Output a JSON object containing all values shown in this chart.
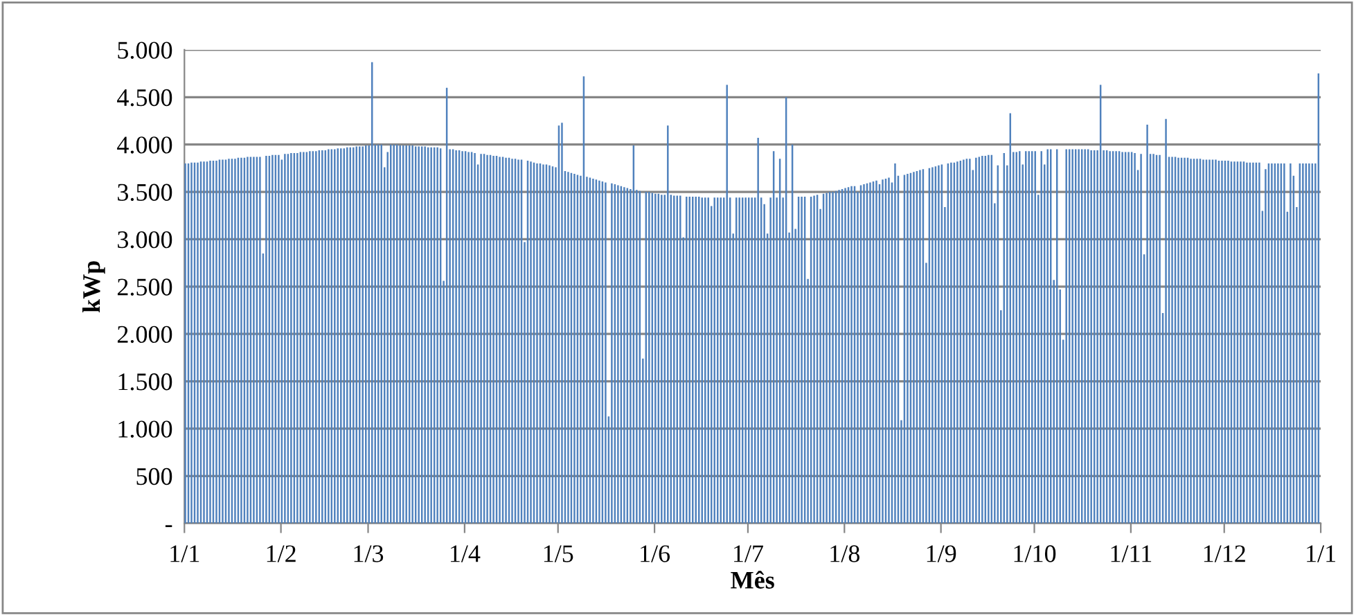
{
  "chart_data": {
    "type": "bar",
    "xlabel": "Mês",
    "ylabel": "kWp",
    "categories": [
      "1/1",
      null,
      null,
      null,
      null,
      null,
      null,
      null,
      null,
      null,
      null,
      null,
      null,
      null,
      null,
      null,
      null,
      null,
      null,
      null,
      null,
      null,
      null,
      null,
      null,
      null,
      null,
      null,
      null,
      null,
      null,
      "1/2",
      null,
      null,
      null,
      null,
      null,
      null,
      null,
      null,
      null,
      null,
      null,
      null,
      null,
      null,
      null,
      null,
      null,
      null,
      null,
      null,
      null,
      null,
      null,
      null,
      null,
      null,
      null,
      "1/3",
      null,
      null,
      null,
      null,
      null,
      null,
      null,
      null,
      null,
      null,
      null,
      null,
      null,
      null,
      null,
      null,
      null,
      null,
      null,
      null,
      null,
      null,
      null,
      null,
      null,
      null,
      null,
      null,
      null,
      null,
      "1/4",
      null,
      null,
      null,
      null,
      null,
      null,
      null,
      null,
      null,
      null,
      null,
      null,
      null,
      null,
      null,
      null,
      null,
      null,
      null,
      null,
      null,
      null,
      null,
      null,
      null,
      null,
      null,
      null,
      null,
      "1/5",
      null,
      null,
      null,
      null,
      null,
      null,
      null,
      null,
      null,
      null,
      null,
      null,
      null,
      null,
      null,
      null,
      null,
      null,
      null,
      null,
      null,
      null,
      null,
      null,
      null,
      null,
      null,
      null,
      null,
      null,
      "1/6",
      null,
      null,
      null,
      null,
      null,
      null,
      null,
      null,
      null,
      null,
      null,
      null,
      null,
      null,
      null,
      null,
      null,
      null,
      null,
      null,
      null,
      null,
      null,
      null,
      null,
      null,
      null,
      null,
      null,
      "1/7",
      null,
      null,
      null,
      null,
      null,
      null,
      null,
      null,
      null,
      null,
      null,
      null,
      null,
      null,
      null,
      null,
      null,
      null,
      null,
      null,
      null,
      null,
      null,
      null,
      null,
      null,
      null,
      null,
      null,
      null,
      "1/8",
      null,
      null,
      null,
      null,
      null,
      null,
      null,
      null,
      null,
      null,
      null,
      null,
      null,
      null,
      null,
      null,
      null,
      null,
      null,
      null,
      null,
      null,
      null,
      null,
      null,
      null,
      null,
      null,
      null,
      null,
      "1/9",
      null,
      null,
      null,
      null,
      null,
      null,
      null,
      null,
      null,
      null,
      null,
      null,
      null,
      null,
      null,
      null,
      null,
      null,
      null,
      null,
      null,
      null,
      null,
      null,
      null,
      null,
      null,
      null,
      null,
      "1/10",
      null,
      null,
      null,
      null,
      null,
      null,
      null,
      null,
      null,
      null,
      null,
      null,
      null,
      null,
      null,
      null,
      null,
      null,
      null,
      null,
      null,
      null,
      null,
      null,
      null,
      null,
      null,
      null,
      null,
      null,
      "1/11",
      null,
      null,
      null,
      null,
      null,
      null,
      null,
      null,
      null,
      null,
      null,
      null,
      null,
      null,
      null,
      null,
      null,
      null,
      null,
      null,
      null,
      null,
      null,
      null,
      null,
      null,
      null,
      null,
      null,
      "1/12",
      null,
      null,
      null,
      null,
      null,
      null,
      null,
      null,
      null,
      null,
      null,
      null,
      null,
      null,
      null,
      null,
      null,
      null,
      null,
      null,
      null,
      null,
      null,
      null,
      null,
      null,
      null,
      null,
      null,
      null,
      "1/1"
    ],
    "series": [
      {
        "color": "#4f81bd",
        "values": [
          3800,
          3800,
          3810,
          3810,
          3810,
          3820,
          3820,
          3820,
          3830,
          3830,
          3830,
          3840,
          3840,
          3840,
          3850,
          3850,
          3850,
          3860,
          3860,
          3860,
          3870,
          3870,
          3870,
          3870,
          3870,
          2850,
          3880,
          3880,
          3890,
          3890,
          3890,
          3840,
          3900,
          3900,
          3910,
          3910,
          3910,
          3920,
          3920,
          3920,
          3930,
          3930,
          3930,
          3940,
          3940,
          3940,
          3950,
          3950,
          3950,
          3960,
          3960,
          3960,
          3970,
          3970,
          3970,
          3980,
          3980,
          3980,
          3990,
          3990,
          4870,
          4000,
          4000,
          4000,
          3760,
          3920,
          4000,
          4000,
          4000,
          3990,
          3990,
          3990,
          3990,
          3990,
          3980,
          3980,
          3980,
          3980,
          3970,
          3970,
          3970,
          3970,
          3960,
          2560,
          4600,
          3950,
          3950,
          3940,
          3940,
          3930,
          3930,
          3920,
          3920,
          3910,
          3790,
          3900,
          3900,
          3890,
          3890,
          3880,
          3880,
          3870,
          3870,
          3860,
          3860,
          3850,
          3850,
          3840,
          3840,
          2970,
          3830,
          3820,
          3810,
          3800,
          3800,
          3790,
          3790,
          3780,
          3770,
          3760,
          4200,
          4230,
          3720,
          3710,
          3700,
          3690,
          3680,
          3670,
          4720,
          3660,
          3650,
          3640,
          3630,
          3620,
          3610,
          3600,
          1130,
          3590,
          3580,
          3570,
          3560,
          3550,
          3540,
          3530,
          3990,
          3520,
          3510,
          1740,
          3500,
          3500,
          3490,
          3480,
          3480,
          3470,
          3470,
          4200,
          3470,
          3460,
          3460,
          3460,
          3020,
          3450,
          3450,
          3450,
          3450,
          3450,
          3440,
          3440,
          3440,
          3350,
          3440,
          3440,
          3440,
          3440,
          4630,
          3440,
          3060,
          3440,
          3440,
          3440,
          3440,
          3440,
          3440,
          3440,
          4070,
          3440,
          3370,
          3060,
          3440,
          3930,
          3440,
          3850,
          3440,
          4500,
          3070,
          4000,
          3110,
          3450,
          3450,
          3450,
          2580,
          3450,
          3460,
          3470,
          3320,
          3480,
          3490,
          3500,
          3500,
          3510,
          3520,
          3530,
          3540,
          3550,
          3560,
          3560,
          3500,
          3570,
          3580,
          3590,
          3600,
          3610,
          3620,
          3580,
          3630,
          3640,
          3650,
          3600,
          3800,
          3670,
          1090,
          3680,
          3690,
          3700,
          3710,
          3720,
          3730,
          3740,
          2750,
          3750,
          3760,
          3770,
          3780,
          3790,
          3340,
          3800,
          3810,
          3810,
          3820,
          3830,
          3840,
          3850,
          3850,
          3730,
          3860,
          3870,
          3880,
          3880,
          3890,
          3890,
          3380,
          3780,
          2250,
          3910,
          3780,
          4330,
          3920,
          3920,
          3930,
          3790,
          3930,
          3930,
          3930,
          3930,
          3470,
          3930,
          3790,
          3950,
          3950,
          2570,
          3950,
          2470,
          1940,
          3950,
          3950,
          3950,
          3950,
          3950,
          3950,
          3950,
          3950,
          3940,
          3940,
          3940,
          4630,
          3940,
          3940,
          3930,
          3930,
          3930,
          3930,
          3920,
          3920,
          3920,
          3920,
          3910,
          3730,
          3900,
          2840,
          4210,
          3900,
          3900,
          3890,
          3890,
          2220,
          4270,
          3870,
          3870,
          3870,
          3860,
          3860,
          3860,
          3860,
          3850,
          3850,
          3850,
          3850,
          3840,
          3840,
          3840,
          3840,
          3840,
          3830,
          3830,
          3830,
          3830,
          3820,
          3820,
          3820,
          3820,
          3820,
          3810,
          3810,
          3810,
          3810,
          3810,
          3300,
          3740,
          3800,
          3800,
          3800,
          3800,
          3800,
          3800,
          3290,
          3800,
          3670,
          3340,
          3800,
          3800,
          3800,
          3800,
          3800,
          3800,
          4750,
          null
        ]
      }
    ],
    "ylim": [
      0,
      5000
    ],
    "yticks": [
      {
        "value": 0,
        "label": "-"
      },
      {
        "value": 500,
        "label": "500"
      },
      {
        "value": 1000,
        "label": "1.000"
      },
      {
        "value": 1500,
        "label": "1.500"
      },
      {
        "value": 2000,
        "label": "2.000"
      },
      {
        "value": 2500,
        "label": "2.500"
      },
      {
        "value": 3000,
        "label": "3.000"
      },
      {
        "value": 3500,
        "label": "3.500"
      },
      {
        "value": 4000,
        "label": "4.000"
      },
      {
        "value": 4500,
        "label": "4.500"
      },
      {
        "value": 5000,
        "label": "5.000"
      }
    ],
    "grid": "y",
    "legend": false
  }
}
